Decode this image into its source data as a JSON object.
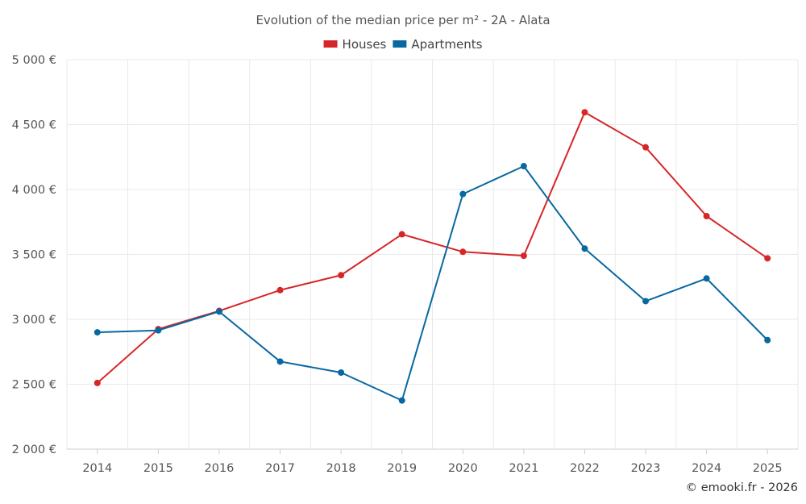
{
  "chart_data": {
    "type": "line",
    "title": "Evolution of the median price per m² - 2A - Alata",
    "x": [
      "2014",
      "2015",
      "2016",
      "2017",
      "2018",
      "2019",
      "2020",
      "2021",
      "2022",
      "2023",
      "2024",
      "2025"
    ],
    "series": [
      {
        "name": "Houses",
        "color": "#d62728",
        "values": [
          2510,
          2925,
          3065,
          3225,
          3340,
          3655,
          3520,
          3490,
          4595,
          4325,
          3795,
          3470
        ]
      },
      {
        "name": "Apartments",
        "color": "#0868a0",
        "values": [
          2900,
          2915,
          3060,
          2675,
          2590,
          2375,
          3965,
          4180,
          3545,
          3140,
          3315,
          2840
        ]
      }
    ],
    "ylim": [
      2000,
      5000
    ],
    "yticks": [
      2000,
      2500,
      3000,
      3500,
      4000,
      4500,
      5000
    ],
    "ytick_labels": [
      "2 000 €",
      "2 500 €",
      "3 000 €",
      "3 500 €",
      "4 000 €",
      "4 500 €",
      "5 000 €"
    ],
    "xlabel": "",
    "ylabel": "",
    "grid": true,
    "legend_position": "top-center"
  },
  "credit": "© emooki.fr - 2026"
}
